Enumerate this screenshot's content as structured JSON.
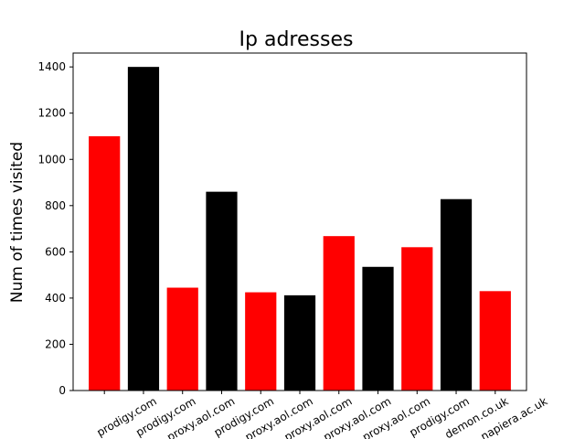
{
  "chart_data": {
    "type": "bar",
    "title": "Ip adresses",
    "xlabel": "",
    "ylabel": "Num of times visited",
    "ylim": [
      0,
      1460
    ],
    "yticks": [
      0,
      200,
      400,
      600,
      800,
      1000,
      1200,
      1400
    ],
    "grid": false,
    "legend": "none",
    "categories": [
      "prodigy.com",
      "prodigy.com",
      "proxy.aol.com",
      "prodigy.com",
      "proxy.aol.com",
      "proxy.aol.com",
      "proxy.aol.com",
      "proxy.aol.com",
      "prodigy.com",
      "demon.co.uk",
      "napiera.ac.uk"
    ],
    "values": [
      1100,
      1400,
      445,
      860,
      425,
      412,
      668,
      535,
      620,
      828,
      430
    ],
    "colors": [
      "#ff0000",
      "#000000",
      "#ff0000",
      "#000000",
      "#ff0000",
      "#000000",
      "#ff0000",
      "#000000",
      "#ff0000",
      "#000000",
      "#ff0000"
    ]
  }
}
